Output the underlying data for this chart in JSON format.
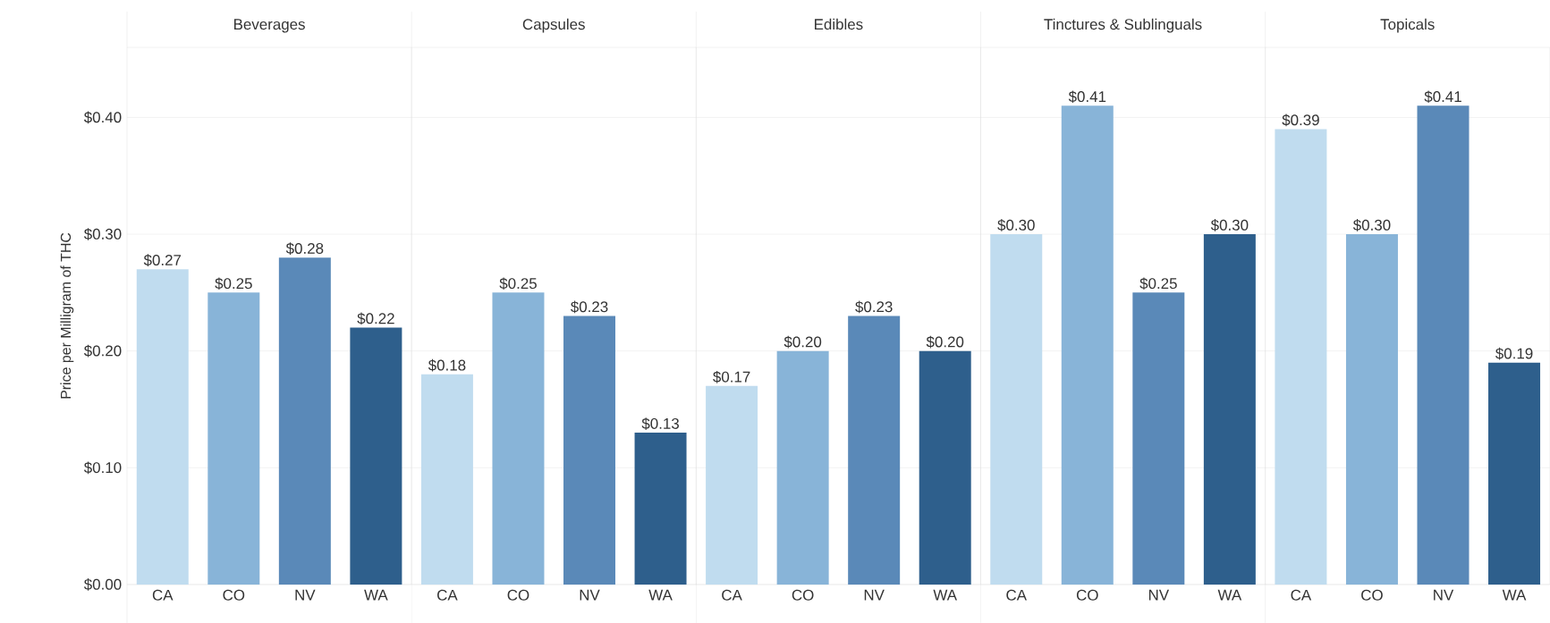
{
  "chart_data": [
    {
      "type": "bar",
      "title": "Beverages",
      "ylabel": "Price per Milligram of THC",
      "categories": [
        "CA",
        "CO",
        "NV",
        "WA"
      ],
      "values": [
        0.27,
        0.25,
        0.28,
        0.22
      ],
      "value_labels": [
        "$0.27",
        "$0.25",
        "$0.28",
        "$0.22"
      ],
      "colors": [
        "#c0dcef",
        "#88b4d8",
        "#5a89b8",
        "#2e5f8c"
      ],
      "ylim": [
        0,
        0.46
      ],
      "yticks": [
        {
          "value": 0,
          "label": "$0.00"
        },
        {
          "value": 0.1,
          "label": "$0.10"
        },
        {
          "value": 0.2,
          "label": "$0.20"
        },
        {
          "value": 0.3,
          "label": "$0.30"
        },
        {
          "value": 0.4,
          "label": "$0.40"
        }
      ],
      "grid": "y"
    },
    {
      "type": "bar",
      "title": "Capsules",
      "categories": [
        "CA",
        "CO",
        "NV",
        "WA"
      ],
      "values": [
        0.18,
        0.25,
        0.23,
        0.13
      ],
      "value_labels": [
        "$0.18",
        "$0.25",
        "$0.23",
        "$0.13"
      ],
      "colors": [
        "#c0dcef",
        "#88b4d8",
        "#5a89b8",
        "#2e5f8c"
      ],
      "ylim": [
        0,
        0.46
      ],
      "yticks": [
        {
          "value": 0,
          "label": null
        },
        {
          "value": 0.1,
          "label": null
        },
        {
          "value": 0.2,
          "label": null
        },
        {
          "value": 0.3,
          "label": null
        },
        {
          "value": 0.4,
          "label": null
        }
      ],
      "grid": "y",
      "tick_labels": "x"
    },
    {
      "type": "bar",
      "title": "Edibles",
      "categories": [
        "CA",
        "CO",
        "NV",
        "WA"
      ],
      "values": [
        0.17,
        0.2,
        0.23,
        0.2
      ],
      "value_labels": [
        "$0.17",
        "$0.20",
        "$0.23",
        "$0.20"
      ],
      "colors": [
        "#c0dcef",
        "#88b4d8",
        "#5a89b8",
        "#2e5f8c"
      ],
      "ylim": [
        0,
        0.46
      ],
      "yticks": [
        {
          "value": 0,
          "label": null
        },
        {
          "value": 0.1,
          "label": null
        },
        {
          "value": 0.2,
          "label": null
        },
        {
          "value": 0.3,
          "label": null
        },
        {
          "value": 0.4,
          "label": null
        }
      ],
      "grid": "y",
      "tick_labels": "x"
    },
    {
      "type": "bar",
      "title": "Tinctures & Sublinguals",
      "categories": [
        "CA",
        "CO",
        "NV",
        "WA"
      ],
      "values": [
        0.3,
        0.41,
        0.25,
        0.3
      ],
      "value_labels": [
        "$0.30",
        "$0.41",
        "$0.25",
        "$0.30"
      ],
      "colors": [
        "#c0dcef",
        "#88b4d8",
        "#5a89b8",
        "#2e5f8c"
      ],
      "ylim": [
        0,
        0.46
      ],
      "yticks": [
        {
          "value": 0,
          "label": null
        },
        {
          "value": 0.1,
          "label": null
        },
        {
          "value": 0.2,
          "label": null
        },
        {
          "value": 0.3,
          "label": null
        },
        {
          "value": 0.4,
          "label": null
        }
      ],
      "grid": "y",
      "tick_labels": "x"
    },
    {
      "type": "bar",
      "title": "Topicals",
      "categories": [
        "CA",
        "CO",
        "NV",
        "WA"
      ],
      "values": [
        0.39,
        0.3,
        0.41,
        0.19
      ],
      "value_labels": [
        "$0.39",
        "$0.30",
        "$0.41",
        "$0.19"
      ],
      "colors": [
        "#c0dcef",
        "#88b4d8",
        "#5a89b8",
        "#2e5f8c"
      ],
      "ylim": [
        0,
        0.46
      ],
      "yticks": [
        {
          "value": 0,
          "label": null
        },
        {
          "value": 0.1,
          "label": null
        },
        {
          "value": 0.2,
          "label": null
        },
        {
          "value": 0.3,
          "label": null
        },
        {
          "value": 0.4,
          "label": null
        }
      ],
      "grid": "y",
      "tick_labels": "x"
    }
  ]
}
